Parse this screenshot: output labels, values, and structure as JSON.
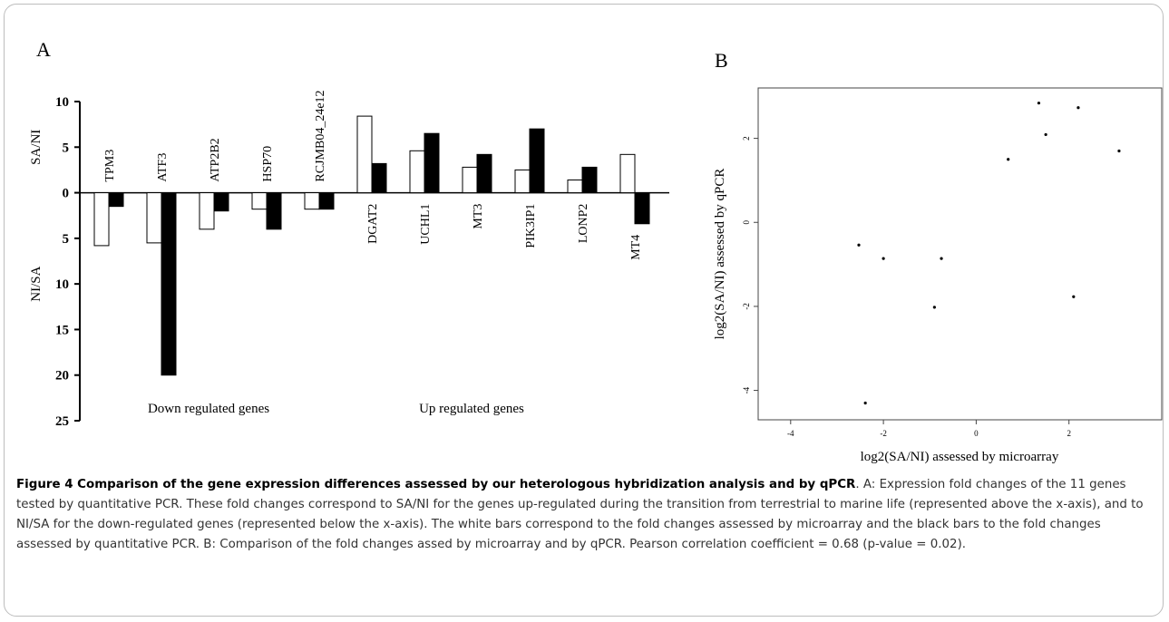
{
  "chart_data": [
    {
      "type": "bar",
      "panel": "A",
      "categories": [
        "TPM3",
        "ATF3",
        "ATP2B2",
        "HSP70",
        "RCJMB04_24e12",
        "DGAT2",
        "UCHL1",
        "MT3",
        "PIK3IP1",
        "LONP2",
        "MT4"
      ],
      "series": [
        {
          "color": "#ffffff",
          "values": [
            -5.8,
            -5.5,
            -4,
            -1.8,
            -1.8,
            8.4,
            4.6,
            2.8,
            2.5,
            1.4,
            4.2
          ]
        },
        {
          "color": "#000000",
          "values": [
            -1.5,
            -20,
            -2,
            -4,
            -1.8,
            3.2,
            6.5,
            4.2,
            7.0,
            2.8,
            -3.4
          ]
        }
      ],
      "ylim": [
        -25,
        10
      ],
      "yticks": [
        10,
        5,
        0,
        {
          "value": -5,
          "label": "5"
        },
        {
          "value": -10,
          "label": "10"
        },
        {
          "value": -15,
          "label": "15"
        },
        {
          "value": -20,
          "label": "20"
        },
        {
          "value": -25,
          "label": "25"
        }
      ],
      "y_label_up": "SA/NI",
      "y_label_down": "NI/SA",
      "annotations": [
        "Down regulated genes",
        "Up regulated genes"
      ]
    },
    {
      "type": "scatter",
      "panel": "B",
      "x": [
        1.35,
        2.2,
        1.5,
        0.69,
        3.08,
        -2.53,
        -2.0,
        -0.75,
        -0.9,
        2.1,
        -2.39
      ],
      "values": [
        2.84,
        2.73,
        2.09,
        1.5,
        1.7,
        -0.54,
        -0.86,
        -0.86,
        -2.02,
        -1.77,
        -4.3
      ],
      "color": "#000000",
      "xlim": [
        -4.7,
        4.0
      ],
      "ylim": [
        -4.7,
        3.2
      ],
      "xticks": [
        -4,
        -2,
        0,
        2
      ],
      "yticks": [
        -4,
        -2,
        0,
        2
      ],
      "x_label": "log2(SA/NI) assessed by microarray",
      "y_label": "log2(SA/NI) assessed by qPCR"
    }
  ],
  "caption": {
    "title": "Figure 4 Comparison of the gene expression differences assessed by our heterologous hybridization analysis and by qPCR",
    "text": ". A: Expression fold changes of the 11 genes tested by quantitative PCR. These fold changes correspond to SA/NI for the genes up-regulated during the transition from terrestrial to marine life (represented above the x-axis), and to NI/SA for the down-regulated genes (represented below the x-axis). The white bars correspond to the fold changes assessed by microarray and the black bars to the fold changes assessed by quantitative PCR. B: Comparison of the fold changes assed by microarray and by qPCR. Pearson correlation coefficient = 0.68 (p-value = 0.02)."
  }
}
